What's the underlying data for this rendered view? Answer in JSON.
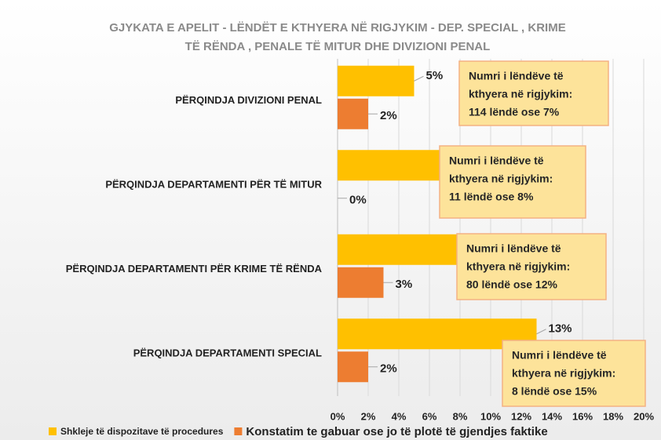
{
  "chart_data": {
    "type": "bar",
    "orientation": "horizontal",
    "title": [
      "GJYKATA E APELIT - LËNDËT E KTHYERA NË RIGJYKIM -  DEP. SPECIAL , KRIME",
      "TË RËNDA , PENALE TË MITUR DHE DIVIZIONI PENAL"
    ],
    "categories": [
      "PËRQINDJA DIVIZIONI PENAL",
      "PËRQINDJA DEPARTAMENTI PËR TË MITUR",
      "PËRQINDJA DEPARTAMENTI PËR KRIME TË RËNDA",
      "PËRQINDJA DEPARTAMENTI SPECIAL"
    ],
    "series": [
      {
        "name": "Shkleje të dispozitave të procedures",
        "color": "#ffc000",
        "values": [
          5,
          8,
          9,
          13
        ],
        "value_labels": [
          "5%",
          null,
          null,
          "13%"
        ]
      },
      {
        "name": "Konstatim te gabuar ose jo të plotë të gjendjes faktike",
        "color": "#ed7d31",
        "values": [
          2,
          0,
          3,
          2
        ],
        "value_labels": [
          "2%",
          "0%",
          "3%",
          "2%"
        ]
      }
    ],
    "xlim": [
      0,
      20
    ],
    "xticks": [
      {
        "value": 0,
        "label": "0%"
      },
      {
        "value": 2,
        "label": "2%"
      },
      {
        "value": 4,
        "label": "4%"
      },
      {
        "value": 6,
        "label": "6%"
      },
      {
        "value": 8,
        "label": "8%"
      },
      {
        "value": 10,
        "label": "10%"
      },
      {
        "value": 12,
        "label": "12%"
      },
      {
        "value": 14,
        "label": "14%"
      },
      {
        "value": 16,
        "label": "16%"
      },
      {
        "value": 18,
        "label": "18%"
      },
      {
        "value": 20,
        "label": "20%"
      }
    ],
    "grid": true,
    "legend": "bottom",
    "annotations": [
      [
        "Numri i lëndëve të",
        "kthyera në rigjykim:",
        "114 lëndë ose 7%"
      ],
      [
        "Numri i lëndëve të",
        "kthyera në rigjykim:",
        "11 lëndë ose 8%"
      ],
      [
        "Numri i lëndëve të",
        "kthyera në rigjykim:",
        "80 lëndë ose 12%"
      ],
      [
        "Numri i lëndëve të",
        "kthyera në rigjykim:",
        "8 lëndë ose 15%"
      ]
    ]
  }
}
